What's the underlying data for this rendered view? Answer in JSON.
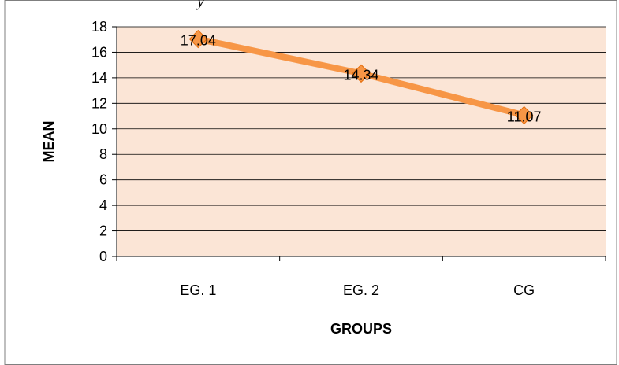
{
  "page": {
    "top_text_fragment": "y"
  },
  "chart_data": {
    "type": "line",
    "title": "",
    "xlabel": "GROUPS",
    "ylabel": "MEAN",
    "categories": [
      "EG. 1",
      "EG. 2",
      "CG"
    ],
    "series": [
      {
        "values": [
          17.04,
          14.34,
          11.07
        ],
        "data_labels": [
          "17.04",
          "14.34",
          "11.07"
        ],
        "color": "#F79646",
        "marker": "diamond"
      }
    ],
    "ylim": [
      0,
      18
    ],
    "yticks": [
      0,
      2,
      4,
      6,
      8,
      10,
      12,
      14,
      16,
      18
    ],
    "ytick_labels": [
      "0",
      "2",
      "4",
      "6",
      "8",
      "10",
      "12",
      "14",
      "16",
      "18"
    ],
    "grid": "horizontal",
    "legend": "none",
    "colors": {
      "plot_area": "#FBE5D6",
      "gridline": "#000000",
      "line": "#F79646"
    }
  }
}
